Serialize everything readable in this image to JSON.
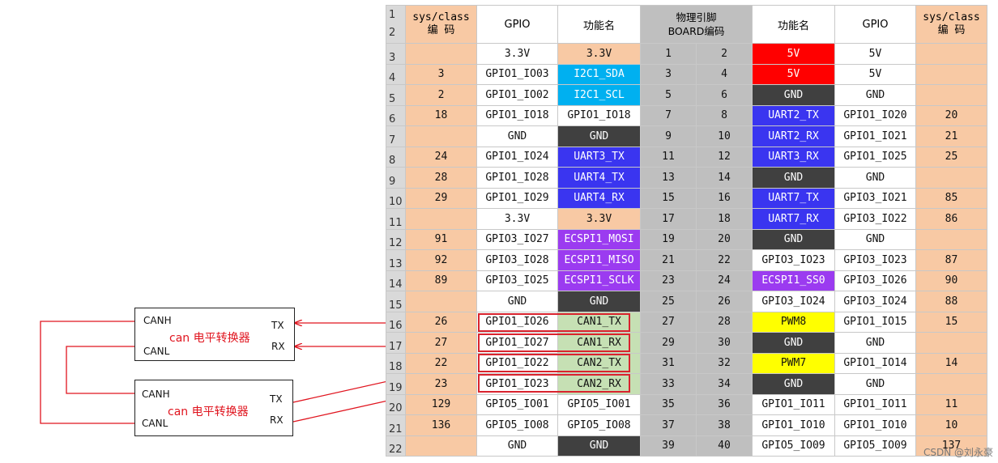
{
  "headers": {
    "sys_left": [
      "sys/class",
      "编 码"
    ],
    "gpio_left": "GPIO",
    "func_left": "功能名",
    "phys": [
      "物理引脚",
      "BOARD编码"
    ],
    "func_right": "功能名",
    "gpio_right": "GPIO",
    "sys_right": [
      "sys/class",
      "编 码"
    ]
  },
  "header_row_numbers": [
    "1",
    "2"
  ],
  "colors": {
    "orange": "#f8c9a4",
    "cyan": "#00b0f0",
    "blue": "#3a35f0",
    "purple": "#9b3bf0",
    "dark": "#404040",
    "red": "#ff0000",
    "yellow": "#ffff00",
    "green": "#c6e0b4",
    "white": "#ffffff",
    "gray": "#bfbfbf"
  },
  "rows": [
    {
      "n": "3",
      "sl": "",
      "gl": "3.3V",
      "fl": "3.3V",
      "fl_c": "orange",
      "pl": "1",
      "pr": "2",
      "fr": "5V",
      "fr_c": "red",
      "gr": "5V",
      "sr": ""
    },
    {
      "n": "4",
      "sl": "3",
      "gl": "GPIO1_IO03",
      "fl": "I2C1_SDA",
      "fl_c": "cyan",
      "pl": "3",
      "pr": "4",
      "fr": "5V",
      "fr_c": "red",
      "gr": "5V",
      "sr": ""
    },
    {
      "n": "5",
      "sl": "2",
      "gl": "GPIO1_IO02",
      "fl": "I2C1_SCL",
      "fl_c": "cyan",
      "pl": "5",
      "pr": "6",
      "fr": "GND",
      "fr_c": "dark",
      "gr": "GND",
      "sr": ""
    },
    {
      "n": "6",
      "sl": "18",
      "gl": "GPIO1_IO18",
      "fl": "GPIO1_IO18",
      "fl_c": "white",
      "pl": "7",
      "pr": "8",
      "fr": "UART2_TX",
      "fr_c": "blue",
      "gr": "GPIO1_IO20",
      "sr": "20"
    },
    {
      "n": "7",
      "sl": "",
      "gl": "GND",
      "fl": "GND",
      "fl_c": "dark",
      "pl": "9",
      "pr": "10",
      "fr": "UART2_RX",
      "fr_c": "blue",
      "gr": "GPIO1_IO21",
      "sr": "21"
    },
    {
      "n": "8",
      "sl": "24",
      "gl": "GPIO1_IO24",
      "fl": "UART3_TX",
      "fl_c": "blue",
      "pl": "11",
      "pr": "12",
      "fr": "UART3_RX",
      "fr_c": "blue",
      "gr": "GPIO1_IO25",
      "sr": "25"
    },
    {
      "n": "9",
      "sl": "28",
      "gl": "GPIO1_IO28",
      "fl": "UART4_TX",
      "fl_c": "blue",
      "pl": "13",
      "pr": "14",
      "fr": "GND",
      "fr_c": "dark",
      "gr": "GND",
      "sr": ""
    },
    {
      "n": "10",
      "sl": "29",
      "gl": "GPIO1_IO29",
      "fl": "UART4_RX",
      "fl_c": "blue",
      "pl": "15",
      "pr": "16",
      "fr": "UART7_TX",
      "fr_c": "blue",
      "gr": "GPIO3_IO21",
      "sr": "85"
    },
    {
      "n": "11",
      "sl": "",
      "gl": "3.3V",
      "fl": "3.3V",
      "fl_c": "orange",
      "pl": "17",
      "pr": "18",
      "fr": "UART7_RX",
      "fr_c": "blue",
      "gr": "GPIO3_IO22",
      "sr": "86"
    },
    {
      "n": "12",
      "sl": "91",
      "gl": "GPIO3_IO27",
      "fl": "ECSPI1_MOSI",
      "fl_c": "purple",
      "pl": "19",
      "pr": "20",
      "fr": "GND",
      "fr_c": "dark",
      "gr": "GND",
      "sr": ""
    },
    {
      "n": "13",
      "sl": "92",
      "gl": "GPIO3_IO28",
      "fl": "ECSPI1_MISO",
      "fl_c": "purple",
      "pl": "21",
      "pr": "22",
      "fr": "GPIO3_IO23",
      "fr_c": "white",
      "gr": "GPIO3_IO23",
      "sr": "87"
    },
    {
      "n": "14",
      "sl": "89",
      "gl": "GPIO3_IO25",
      "fl": "ECSPI1_SCLK",
      "fl_c": "purple",
      "pl": "23",
      "pr": "24",
      "fr": "ECSPI1_SS0",
      "fr_c": "purple",
      "gr": "GPIO3_IO26",
      "sr": "90"
    },
    {
      "n": "15",
      "sl": "",
      "gl": "GND",
      "fl": "GND",
      "fl_c": "dark",
      "pl": "25",
      "pr": "26",
      "fr": "GPIO3_IO24",
      "fr_c": "white",
      "gr": "GPIO3_IO24",
      "sr": "88"
    },
    {
      "n": "16",
      "sl": "26",
      "gl": "GPIO1_IO26",
      "fl": "CAN1_TX",
      "fl_c": "green",
      "pl": "27",
      "pr": "28",
      "fr": "PWM8",
      "fr_c": "yellow",
      "gr": "GPIO1_IO15",
      "sr": "15"
    },
    {
      "n": "17",
      "sl": "27",
      "gl": "GPIO1_IO27",
      "fl": "CAN1_RX",
      "fl_c": "green",
      "pl": "29",
      "pr": "30",
      "fr": "GND",
      "fr_c": "dark",
      "gr": "GND",
      "sr": ""
    },
    {
      "n": "18",
      "sl": "22",
      "gl": "GPIO1_IO22",
      "fl": "CAN2_TX",
      "fl_c": "green",
      "pl": "31",
      "pr": "32",
      "fr": "PWM7",
      "fr_c": "yellow",
      "gr": "GPIO1_IO14",
      "sr": "14"
    },
    {
      "n": "19",
      "sl": "23",
      "gl": "GPIO1_IO23",
      "fl": "CAN2_RX",
      "fl_c": "green",
      "pl": "33",
      "pr": "34",
      "fr": "GND",
      "fr_c": "dark",
      "gr": "GND",
      "sr": ""
    },
    {
      "n": "20",
      "sl": "129",
      "gl": "GPIO5_IO01",
      "fl": "GPIO5_IO01",
      "fl_c": "white",
      "pl": "35",
      "pr": "36",
      "fr": "GPIO1_IO11",
      "fr_c": "white",
      "gr": "GPIO1_IO11",
      "sr": "11"
    },
    {
      "n": "21",
      "sl": "136",
      "gl": "GPIO5_IO08",
      "fl": "GPIO5_IO08",
      "fl_c": "white",
      "pl": "37",
      "pr": "38",
      "fr": "GPIO1_IO10",
      "fr_c": "white",
      "gr": "GPIO1_IO10",
      "sr": "10"
    },
    {
      "n": "22",
      "sl": "",
      "gl": "GND",
      "fl": "GND",
      "fl_c": "dark",
      "pl": "39",
      "pr": "40",
      "fr": "GPIO5_IO09",
      "fr_c": "white",
      "gr": "GPIO5_IO09",
      "sr": "137"
    }
  ],
  "converter1": {
    "canh": "CANH",
    "canl": "CANL",
    "tx": "TX",
    "rx": "RX",
    "title": "can 电平转换器"
  },
  "converter2": {
    "canh": "CANH",
    "canl": "CANL",
    "tx": "TX",
    "rx": "RX",
    "title": "can 电平转换器"
  },
  "watermark": "CSDN @刘永豪"
}
